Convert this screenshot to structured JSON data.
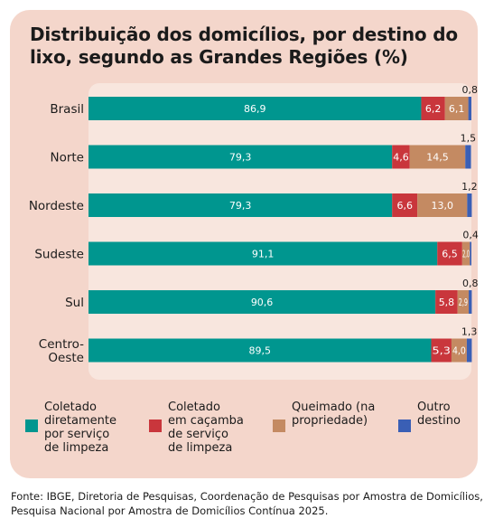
{
  "title": "Distribuição dos domicílios, por destino do lixo, segundo as Grandes Regiões (%)",
  "source": "Fonte: IBGE, Diretoria de Pesquisas, Coordenação de Pesquisas por Amostra de Domicílios, Pesquisa Nacional por Amostra de Domicílios Contínua 2025.",
  "colors": {
    "coletado_direto": "#00968f",
    "cacamba": "#c9363c",
    "queimado": "#c48a62",
    "outro": "#3a5fb5",
    "background": "#f4d6cb",
    "plot_background": "#f8e6de"
  },
  "chart_data": {
    "type": "bar",
    "orientation": "horizontal",
    "stacked": true,
    "title": "Distribuição dos domicílios, por destino do lixo, segundo as Grandes Regiões (%)",
    "categories": [
      "Brasil",
      "Norte",
      "Nordeste",
      "Sudeste",
      "Sul",
      "Centro-\nOeste"
    ],
    "series": [
      {
        "name": "Coletado\ndiretamente\npor serviço\nde limpeza",
        "values": [
          86.9,
          79.3,
          79.3,
          91.1,
          90.6,
          89.5
        ]
      },
      {
        "name": "Coletado\nem caçamba\nde serviço\nde limpeza",
        "values": [
          6.2,
          4.6,
          6.6,
          6.5,
          5.8,
          5.3
        ]
      },
      {
        "name": "Queimado (na\npropriedade)",
        "values": [
          6.1,
          14.5,
          13.0,
          2.0,
          2.9,
          4.0
        ]
      },
      {
        "name": "Outro\ndestino",
        "values": [
          0.8,
          1.5,
          1.2,
          0.4,
          0.8,
          1.3
        ]
      }
    ],
    "value_labels": [
      [
        "86,9",
        "79,3",
        "79,3",
        "91,1",
        "90,6",
        "89,5"
      ],
      [
        "6,2",
        "4,6",
        "6,6",
        "6,5",
        "5,8",
        "5,3"
      ],
      [
        "6,1",
        "14,5",
        "13,0",
        "2,0",
        "2,9",
        "4,0"
      ],
      [
        "0,8",
        "1,5",
        "1,2",
        "0,4",
        "0,8",
        "1,3"
      ]
    ],
    "xlim": [
      0,
      100
    ],
    "grid": false,
    "legend": "bottom"
  }
}
